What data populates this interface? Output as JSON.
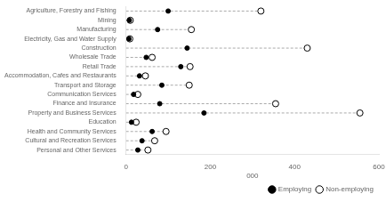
{
  "chart_data": {
    "type": "dot",
    "orientation": "horizontal",
    "categories": [
      "Agriculture, Forestry and Fishing",
      "Mining",
      "Manufacturing",
      "Electricity, Gas and Water Supply",
      "Construction",
      "Wholesale Trade",
      "Retail Trade",
      "Accommodation, Cafes and Restaurants",
      "Transport and Storage",
      "Communication Services",
      "Finance and Insurance",
      "Property and Business Services",
      "Education",
      "Health and Community Services",
      "Cultural and Recreation Services",
      "Personal and Other Services"
    ],
    "series": [
      {
        "name": "Employing",
        "color": "black",
        "marker": "circle",
        "values": [
          100,
          8,
          75,
          7,
          145,
          48,
          130,
          32,
          85,
          18,
          80,
          185,
          13,
          62,
          38,
          28
        ]
      },
      {
        "name": "Non-employing",
        "color": "white",
        "marker": "circle",
        "line_style": "dashed",
        "values": [
          320,
          10,
          155,
          9,
          430,
          62,
          152,
          46,
          150,
          28,
          355,
          555,
          24,
          95,
          68,
          52
        ]
      }
    ],
    "xlim": [
      0,
      600
    ],
    "xticks": [
      0,
      200,
      400,
      600
    ],
    "xlabel": "000",
    "grid": false,
    "legend": "lower right"
  }
}
